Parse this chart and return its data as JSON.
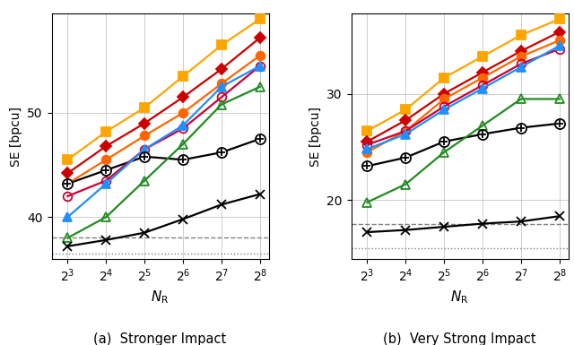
{
  "x_vals": [
    8,
    16,
    32,
    64,
    128,
    256
  ],
  "x_labels": [
    "$2^3$",
    "$2^4$",
    "$2^5$",
    "$2^6$",
    "$2^7$",
    "$2^8$"
  ],
  "xlabel": "$N_\\mathrm{R}$",
  "subplot_a": {
    "title": "(a)  Stronger Impact",
    "ylabel": "SE [bpcu]",
    "ylim": [
      36.0,
      59.5
    ],
    "yticks": [
      40,
      50
    ],
    "dashed_line": 38.0,
    "dotted_line": 36.5,
    "series": [
      {
        "label": "yellow_square",
        "color": "#FFA500",
        "marker": "s",
        "markerfc": "#FFA500",
        "markerec": "#FFA500",
        "lw": 1.6,
        "ms": 7,
        "y": [
          45.5,
          48.2,
          50.5,
          53.5,
          56.5,
          59.0
        ]
      },
      {
        "label": "red_diamond",
        "color": "#CC0000",
        "marker": "D",
        "markerfc": "#CC0000",
        "markerec": "#CC0000",
        "lw": 1.6,
        "ms": 6,
        "y": [
          44.2,
          46.8,
          49.0,
          51.5,
          54.2,
          57.2
        ]
      },
      {
        "label": "orange_circle",
        "color": "#FF6600",
        "marker": "o",
        "markerfc": "#FF6600",
        "markerec": "#FF6600",
        "lw": 1.6,
        "ms": 7,
        "y": [
          43.2,
          45.5,
          47.8,
          50.0,
          52.8,
          55.5
        ]
      },
      {
        "label": "red_open_circle",
        "color": "#CC0033",
        "marker": "o",
        "markerfc": "none",
        "markerec": "#CC0033",
        "lw": 1.6,
        "ms": 7,
        "y": [
          42.0,
          43.5,
          46.5,
          48.5,
          51.5,
          54.5
        ]
      },
      {
        "label": "blue_triangle",
        "color": "#1E90FF",
        "marker": "^",
        "markerfc": "#1E90FF",
        "markerec": "#1E90FF",
        "lw": 1.6,
        "ms": 7,
        "y": [
          40.0,
          43.2,
          46.5,
          48.8,
          52.5,
          54.5
        ]
      },
      {
        "label": "green_triangle",
        "color": "#228B22",
        "marker": "^",
        "markerfc": "none",
        "markerec": "#228B22",
        "lw": 1.6,
        "ms": 7,
        "y": [
          38.0,
          40.0,
          43.5,
          47.0,
          50.8,
          52.5
        ]
      },
      {
        "label": "black_otimes",
        "color": "#000000",
        "lw": 1.6,
        "ms": 8,
        "y": [
          43.2,
          44.5,
          45.8,
          45.5,
          46.2,
          47.5
        ],
        "special_marker": "otimes"
      },
      {
        "label": "black_cross",
        "color": "#000000",
        "marker": "x",
        "markerfc": "#000000",
        "markerec": "#000000",
        "lw": 1.6,
        "ms": 7,
        "y": [
          37.2,
          37.8,
          38.5,
          39.8,
          41.2,
          42.2
        ]
      }
    ]
  },
  "subplot_b": {
    "title": "(b)  Very Strong Impact",
    "ylabel": "SE [bpcu]",
    "ylim": [
      14.5,
      37.5
    ],
    "yticks": [
      20,
      30
    ],
    "dashed_line": 17.8,
    "dotted_line": 15.5,
    "series": [
      {
        "label": "yellow_square",
        "color": "#FFA500",
        "marker": "s",
        "markerfc": "#FFA500",
        "markerec": "#FFA500",
        "lw": 1.6,
        "ms": 7,
        "y": [
          26.5,
          28.5,
          31.5,
          33.5,
          35.5,
          37.0
        ]
      },
      {
        "label": "red_diamond",
        "color": "#CC0000",
        "marker": "D",
        "markerfc": "#CC0000",
        "markerec": "#CC0000",
        "lw": 1.6,
        "ms": 6,
        "y": [
          25.5,
          27.5,
          30.0,
          32.0,
          34.0,
          35.8
        ]
      },
      {
        "label": "orange_circle",
        "color": "#FF6600",
        "marker": "o",
        "markerfc": "#FF6600",
        "markerec": "#FF6600",
        "lw": 1.6,
        "ms": 7,
        "y": [
          24.5,
          26.5,
          29.5,
          31.5,
          33.5,
          35.0
        ]
      },
      {
        "label": "red_open_circle",
        "color": "#CC0033",
        "marker": "o",
        "markerfc": "none",
        "markerec": "#CC0033",
        "lw": 1.6,
        "ms": 7,
        "y": [
          25.2,
          26.5,
          28.8,
          30.8,
          32.8,
          34.2
        ]
      },
      {
        "label": "blue_triangle",
        "color": "#1E90FF",
        "marker": "^",
        "markerfc": "#1E90FF",
        "markerec": "#1E90FF",
        "lw": 1.6,
        "ms": 7,
        "y": [
          24.8,
          26.2,
          28.5,
          30.5,
          32.5,
          34.5
        ]
      },
      {
        "label": "green_triangle",
        "color": "#228B22",
        "marker": "^",
        "markerfc": "none",
        "markerec": "#228B22",
        "lw": 1.6,
        "ms": 7,
        "y": [
          19.8,
          21.5,
          24.5,
          27.0,
          29.5,
          29.5
        ]
      },
      {
        "label": "black_otimes",
        "color": "#000000",
        "lw": 1.6,
        "ms": 8,
        "y": [
          23.2,
          24.0,
          25.5,
          26.2,
          26.8,
          27.2
        ],
        "special_marker": "otimes"
      },
      {
        "label": "black_cross",
        "color": "#000000",
        "marker": "x",
        "markerfc": "#000000",
        "markerec": "#000000",
        "lw": 1.6,
        "ms": 7,
        "y": [
          17.0,
          17.2,
          17.5,
          17.8,
          18.0,
          18.5
        ]
      }
    ]
  }
}
